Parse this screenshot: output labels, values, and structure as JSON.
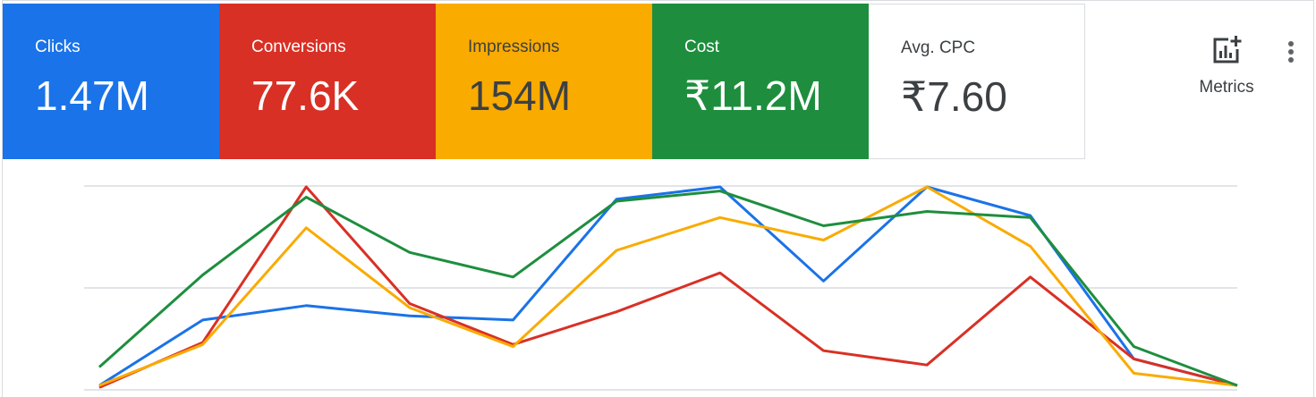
{
  "tiles": [
    {
      "label": "Clicks",
      "value": "1.47M",
      "bg": "#1a73e8",
      "fg": "#ffffff"
    },
    {
      "label": "Conversions",
      "value": "77.6K",
      "bg": "#d93025",
      "fg": "#ffffff"
    },
    {
      "label": "Impressions",
      "value": "154M",
      "bg": "#f9ab00",
      "fg": "#3c4043"
    },
    {
      "label": "Cost",
      "value": "₹11.2M",
      "bg": "#1e8e3e",
      "fg": "#ffffff"
    },
    {
      "label": "Avg. CPC",
      "value": "₹7.60",
      "bg": "#ffffff",
      "fg": "#3c4043"
    }
  ],
  "toolbar": {
    "metrics_label": "Metrics",
    "metrics_icon": "add-chart-icon",
    "more_icon": "more-vert-icon"
  },
  "chart_data": {
    "type": "line",
    "x": [
      1,
      2,
      3,
      4,
      5,
      6,
      7,
      8,
      9,
      10,
      11,
      12
    ],
    "ylim": [
      0,
      100
    ],
    "grid": true,
    "legend": "none",
    "series": [
      {
        "color": "#1a73e8",
        "values": [
          3,
          35,
          42,
          37,
          35,
          94,
          100,
          54,
          100,
          86,
          16,
          3
        ]
      },
      {
        "color": "#d93025",
        "values": [
          2,
          24,
          100,
          43,
          23,
          39,
          58,
          20,
          13,
          56,
          16,
          3
        ]
      },
      {
        "color": "#f9ab00",
        "values": [
          3,
          23,
          80,
          41,
          22,
          69,
          85,
          74,
          100,
          71,
          9,
          3
        ]
      },
      {
        "color": "#1e8e3e",
        "values": [
          12,
          57,
          95,
          68,
          56,
          93,
          98,
          81,
          88,
          85,
          22,
          3
        ]
      }
    ]
  }
}
